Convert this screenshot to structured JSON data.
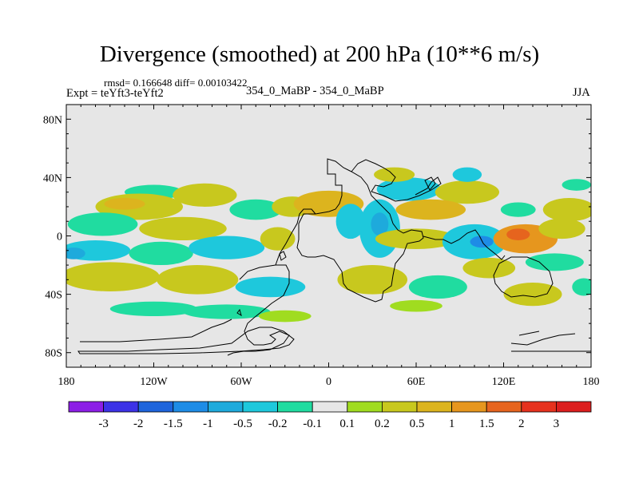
{
  "chart_data": {
    "type": "heatmap",
    "title": "Divergence (smoothed) at 200 hPa (10**6 m/s)",
    "stats_line": "rmsd= 0.166648 diff= 0.00103422",
    "experiment_line": "Expt = teYft3-teYft2",
    "case_line": "354_0_MaBP - 354_0_MaBP",
    "season": "JJA",
    "xlim": [
      -180,
      180
    ],
    "ylim": [
      -90,
      90
    ],
    "x_ticks": [
      {
        "value": -180,
        "label": "180"
      },
      {
        "value": -120,
        "label": "120W"
      },
      {
        "value": -60,
        "label": "60W"
      },
      {
        "value": 0,
        "label": "0"
      },
      {
        "value": 60,
        "label": "60E"
      },
      {
        "value": 120,
        "label": "120E"
      },
      {
        "value": 180,
        "label": "180"
      }
    ],
    "y_ticks": [
      {
        "value": 80,
        "label": "80N"
      },
      {
        "value": 40,
        "label": "40N"
      },
      {
        "value": 0,
        "label": "0"
      },
      {
        "value": -40,
        "label": "40S"
      },
      {
        "value": -80,
        "label": "80S"
      }
    ],
    "colorbar": {
      "colors": [
        "#8c1ee6",
        "#3c32e6",
        "#1e64dc",
        "#1e8ce6",
        "#1eaadc",
        "#1ec8dc",
        "#20dca0",
        "#e6e6e6",
        "#a0dc20",
        "#c8c81e",
        "#dcb41e",
        "#e6961e",
        "#e6641e",
        "#e6321e",
        "#dc1e1e"
      ],
      "labels": [
        "-3",
        "-2",
        "-1.5",
        "-1",
        "-0.5",
        "-0.2",
        "-0.1",
        "0.1",
        "0.2",
        "0.5",
        "1",
        "1.5",
        "2",
        "3"
      ]
    },
    "background_color": "#e6e6e6",
    "field_features": [
      {
        "lon": -165,
        "lat": 38,
        "rx": 14,
        "ry": 7,
        "level": 7
      },
      {
        "lon": -120,
        "lat": 30,
        "rx": 20,
        "ry": 5,
        "level": 6
      },
      {
        "lon": -130,
        "lat": 20,
        "rx": 30,
        "ry": 9,
        "level": 9
      },
      {
        "lon": -140,
        "lat": 22,
        "rx": 14,
        "ry": 4,
        "level": 10
      },
      {
        "lon": -85,
        "lat": 28,
        "rx": 22,
        "ry": 8,
        "level": 9
      },
      {
        "lon": -155,
        "lat": 8,
        "rx": 24,
        "ry": 8,
        "level": 6
      },
      {
        "lon": -100,
        "lat": 5,
        "rx": 30,
        "ry": 8,
        "level": 9
      },
      {
        "lon": -50,
        "lat": 18,
        "rx": 18,
        "ry": 7,
        "level": 6
      },
      {
        "lon": -25,
        "lat": 20,
        "rx": 14,
        "ry": 7,
        "level": 9
      },
      {
        "lon": -160,
        "lat": -10,
        "rx": 24,
        "ry": 7,
        "level": 5
      },
      {
        "lon": -175,
        "lat": -12,
        "rx": 8,
        "ry": 4,
        "level": 4
      },
      {
        "lon": -115,
        "lat": -12,
        "rx": 22,
        "ry": 8,
        "level": 6
      },
      {
        "lon": -70,
        "lat": -8,
        "rx": 26,
        "ry": 8,
        "level": 5
      },
      {
        "lon": -35,
        "lat": -2,
        "rx": 12,
        "ry": 8,
        "level": 9
      },
      {
        "lon": -150,
        "lat": -28,
        "rx": 34,
        "ry": 10,
        "level": 9
      },
      {
        "lon": -90,
        "lat": -30,
        "rx": 28,
        "ry": 10,
        "level": 9
      },
      {
        "lon": -40,
        "lat": -35,
        "rx": 24,
        "ry": 7,
        "level": 5
      },
      {
        "lon": -70,
        "lat": -52,
        "rx": 30,
        "ry": 5,
        "level": 6
      },
      {
        "lon": -120,
        "lat": -50,
        "rx": 30,
        "ry": 5,
        "level": 6
      },
      {
        "lon": -30,
        "lat": -55,
        "rx": 18,
        "ry": 4,
        "level": 8
      },
      {
        "lon": 0,
        "lat": 22,
        "rx": 24,
        "ry": 9,
        "level": 10
      },
      {
        "lon": 15,
        "lat": 10,
        "rx": 10,
        "ry": 12,
        "level": 5
      },
      {
        "lon": 35,
        "lat": 5,
        "rx": 14,
        "ry": 20,
        "level": 5
      },
      {
        "lon": 35,
        "lat": 8,
        "rx": 6,
        "ry": 8,
        "level": 4
      },
      {
        "lon": 55,
        "lat": 32,
        "rx": 22,
        "ry": 8,
        "level": 5
      },
      {
        "lon": 95,
        "lat": 30,
        "rx": 22,
        "ry": 8,
        "level": 9
      },
      {
        "lon": 45,
        "lat": 42,
        "rx": 14,
        "ry": 5,
        "level": 9
      },
      {
        "lon": 70,
        "lat": 18,
        "rx": 24,
        "ry": 7,
        "level": 10
      },
      {
        "lon": 60,
        "lat": -2,
        "rx": 28,
        "ry": 7,
        "level": 9
      },
      {
        "lon": 100,
        "lat": -4,
        "rx": 22,
        "ry": 12,
        "level": 5
      },
      {
        "lon": 105,
        "lat": -4,
        "rx": 8,
        "ry": 4,
        "level": 3
      },
      {
        "lon": 135,
        "lat": -2,
        "rx": 22,
        "ry": 10,
        "level": 11
      },
      {
        "lon": 130,
        "lat": 1,
        "rx": 8,
        "ry": 4,
        "level": 12
      },
      {
        "lon": 160,
        "lat": 5,
        "rx": 16,
        "ry": 7,
        "level": 9
      },
      {
        "lon": 165,
        "lat": 18,
        "rx": 18,
        "ry": 8,
        "level": 9
      },
      {
        "lon": 130,
        "lat": 18,
        "rx": 12,
        "ry": 5,
        "level": 6
      },
      {
        "lon": 155,
        "lat": -18,
        "rx": 20,
        "ry": 6,
        "level": 6
      },
      {
        "lon": 110,
        "lat": -22,
        "rx": 18,
        "ry": 7,
        "level": 9
      },
      {
        "lon": 30,
        "lat": -30,
        "rx": 24,
        "ry": 10,
        "level": 9
      },
      {
        "lon": 75,
        "lat": -35,
        "rx": 20,
        "ry": 8,
        "level": 6
      },
      {
        "lon": 140,
        "lat": -40,
        "rx": 20,
        "ry": 8,
        "level": 9
      },
      {
        "lon": 175,
        "lat": -35,
        "rx": 8,
        "ry": 6,
        "level": 6
      },
      {
        "lon": 60,
        "lat": -48,
        "rx": 18,
        "ry": 4,
        "level": 8
      },
      {
        "lon": 95,
        "lat": 42,
        "rx": 10,
        "ry": 5,
        "level": 5
      },
      {
        "lon": 170,
        "lat": 35,
        "rx": 10,
        "ry": 4,
        "level": 6
      }
    ]
  }
}
